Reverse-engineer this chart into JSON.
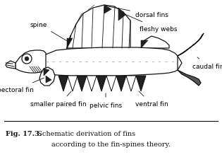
{
  "title_bold": "Fig. 17.3.",
  "title_normal": " Schematic derivation of fins",
  "title_line2": "according to the fin-spines theory.",
  "bg_color": "#ffffff",
  "fig_width": 3.15,
  "fig_height": 2.3,
  "dpi": 100
}
